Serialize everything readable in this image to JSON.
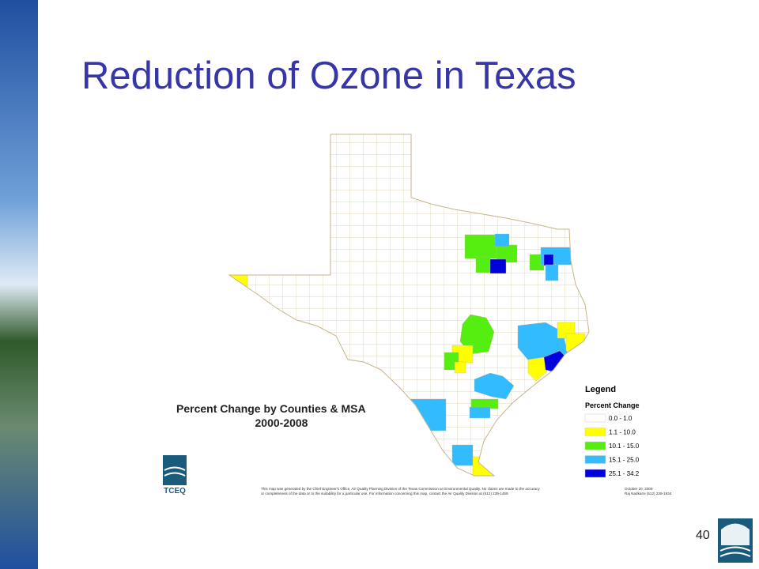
{
  "title": "Reduction of Ozone in Texas",
  "map": {
    "caption": [
      "Percent Change by Counties & MSA",
      "2000-2008"
    ],
    "legend": {
      "title": "Legend",
      "subtitle": "Percent Change",
      "items": [
        {
          "label": "0.0 - 1.0",
          "color": "#ffffff"
        },
        {
          "label": "1.1 - 10.0",
          "color": "#ffff00"
        },
        {
          "label": "10.1 - 15.0",
          "color": "#55ee11"
        },
        {
          "label": "15.1 - 25.0",
          "color": "#33bbff"
        },
        {
          "label": "25.1 - 34.2",
          "color": "#0000dd"
        }
      ]
    },
    "logo": "TCEQ",
    "disclaimer": [
      "This map was generated by the Chief Engineer's Office, Air Quality Planning Division of the Texas Commission on Environmental Quality. No claims are made to the accuracy",
      "or completeness of the data or to the suitability  for a particular use. For information concerning this map, contact the Air Quality Division at (512) 239-1459"
    ],
    "credit": [
      "October 20, 2009",
      "Raj Nadkarni (512) 239-1934"
    ]
  },
  "page_number": "40"
}
